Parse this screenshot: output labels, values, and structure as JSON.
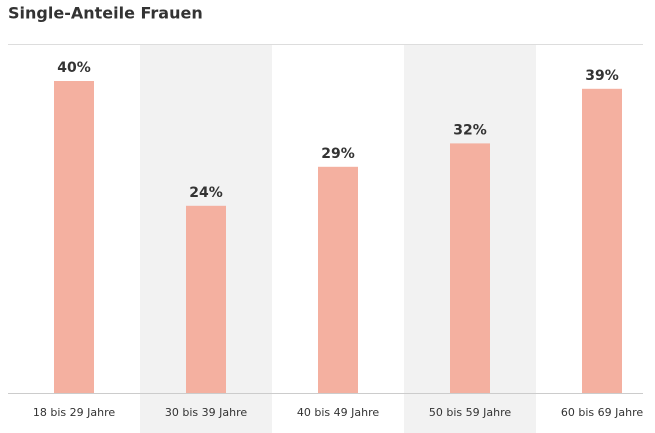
{
  "chart_data": {
    "type": "bar",
    "title": "Single-Anteile Frauen",
    "categories": [
      "18 bis 29 Jahre",
      "30 bis 39 Jahre",
      "40 bis 49 Jahre",
      "50 bis 59 Jahre",
      "60 bis 69 Jahre"
    ],
    "values": [
      40,
      24,
      29,
      32,
      39
    ],
    "value_labels": [
      "40%",
      "24%",
      "29%",
      "32%",
      "39%"
    ],
    "color": "#f4b0a0"
  }
}
